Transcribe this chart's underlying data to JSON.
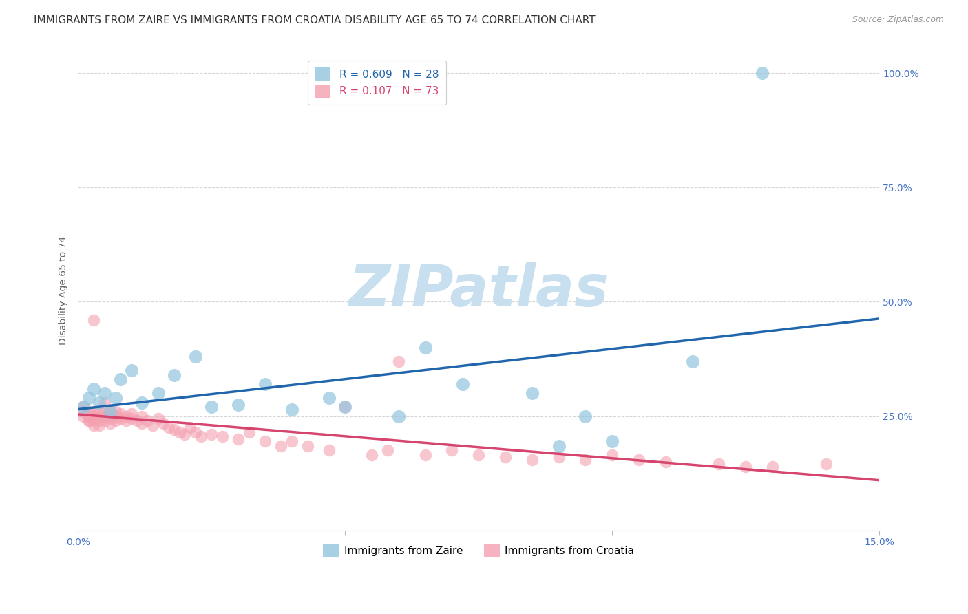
{
  "title": "IMMIGRANTS FROM ZAIRE VS IMMIGRANTS FROM CROATIA DISABILITY AGE 65 TO 74 CORRELATION CHART",
  "source": "Source: ZipAtlas.com",
  "ylabel": "Disability Age 65 to 74",
  "xlim": [
    0.0,
    0.15
  ],
  "ylim": [
    0.0,
    1.05
  ],
  "xticks": [
    0.0,
    0.05,
    0.1,
    0.15
  ],
  "xticklabels": [
    "0.0%",
    "",
    "",
    "15.0%"
  ],
  "yticks_right": [
    0.25,
    0.5,
    0.75,
    1.0
  ],
  "yticklabels_right": [
    "25.0%",
    "50.0%",
    "75.0%",
    "100.0%"
  ],
  "zaire_color": "#92c5de",
  "croatia_color": "#f4a0b0",
  "zaire_line_color": "#2166ac",
  "croatia_line_color": "#d6456e",
  "R_zaire": 0.609,
  "N_zaire": 28,
  "R_croatia": 0.107,
  "N_croatia": 73,
  "watermark_text": "ZIPatlas",
  "watermark_color": "#c8dff0",
  "background_color": "#ffffff",
  "grid_color": "#cccccc",
  "title_fontsize": 11,
  "axis_label_fontsize": 10,
  "tick_fontsize": 10,
  "legend_fontsize": 11,
  "zaire_x": [
    0.001,
    0.002,
    0.003,
    0.004,
    0.005,
    0.006,
    0.007,
    0.008,
    0.01,
    0.012,
    0.015,
    0.018,
    0.022,
    0.025,
    0.03,
    0.035,
    0.04,
    0.047,
    0.05,
    0.06,
    0.065,
    0.072,
    0.085,
    0.09,
    0.095,
    0.1,
    0.115,
    0.128
  ],
  "zaire_y": [
    0.27,
    0.29,
    0.31,
    0.28,
    0.3,
    0.26,
    0.29,
    0.33,
    0.35,
    0.28,
    0.3,
    0.34,
    0.38,
    0.27,
    0.275,
    0.32,
    0.265,
    0.29,
    0.27,
    0.25,
    0.4,
    0.32,
    0.3,
    0.185,
    0.25,
    0.195,
    0.37,
    1.0
  ],
  "croatia_x": [
    0.001,
    0.001,
    0.001,
    0.002,
    0.002,
    0.002,
    0.002,
    0.003,
    0.003,
    0.003,
    0.003,
    0.003,
    0.004,
    0.004,
    0.004,
    0.004,
    0.005,
    0.005,
    0.005,
    0.005,
    0.006,
    0.006,
    0.006,
    0.007,
    0.007,
    0.007,
    0.008,
    0.008,
    0.009,
    0.009,
    0.01,
    0.01,
    0.011,
    0.012,
    0.012,
    0.013,
    0.014,
    0.015,
    0.016,
    0.017,
    0.018,
    0.019,
    0.02,
    0.021,
    0.022,
    0.023,
    0.025,
    0.027,
    0.03,
    0.032,
    0.035,
    0.038,
    0.04,
    0.043,
    0.047,
    0.05,
    0.055,
    0.058,
    0.06,
    0.065,
    0.07,
    0.075,
    0.08,
    0.085,
    0.09,
    0.095,
    0.1,
    0.105,
    0.11,
    0.12,
    0.125,
    0.13,
    0.14
  ],
  "croatia_y": [
    0.27,
    0.26,
    0.25,
    0.26,
    0.25,
    0.24,
    0.24,
    0.26,
    0.25,
    0.24,
    0.23,
    0.46,
    0.26,
    0.25,
    0.24,
    0.23,
    0.28,
    0.265,
    0.25,
    0.24,
    0.26,
    0.245,
    0.235,
    0.26,
    0.25,
    0.24,
    0.255,
    0.245,
    0.25,
    0.24,
    0.255,
    0.245,
    0.24,
    0.25,
    0.235,
    0.24,
    0.23,
    0.245,
    0.235,
    0.225,
    0.22,
    0.215,
    0.21,
    0.225,
    0.215,
    0.205,
    0.21,
    0.205,
    0.2,
    0.215,
    0.195,
    0.185,
    0.195,
    0.185,
    0.175,
    0.27,
    0.165,
    0.175,
    0.37,
    0.165,
    0.175,
    0.165,
    0.16,
    0.155,
    0.16,
    0.155,
    0.165,
    0.155,
    0.15,
    0.145,
    0.14,
    0.14,
    0.145
  ]
}
